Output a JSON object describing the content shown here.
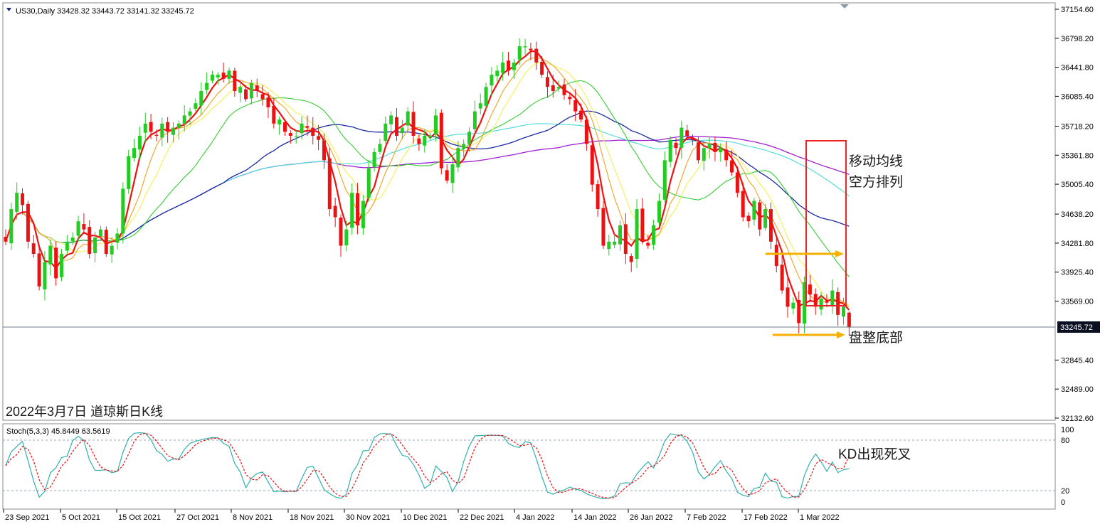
{
  "chart_data": {
    "type": "candlestick",
    "symbol_header": "US30,Daily  33428.32 33443.72 33141.32 33245.72",
    "ohlc_current": {
      "open": 33428.32,
      "high": 33443.72,
      "low": 33141.32,
      "close": 33245.72
    },
    "current_price_label": "33245.72",
    "price_axis_ticks": [
      "37154.60",
      "36798.20",
      "36441.80",
      "36085.40",
      "35718.20",
      "35361.80",
      "35005.40",
      "34638.20",
      "34281.80",
      "33925.40",
      "33569.00",
      "33245.72",
      "32845.40",
      "32489.00",
      "32132.60"
    ],
    "date_labels": [
      "23 Sep 2021",
      "5 Oct 2021",
      "15 Oct 2021",
      "27 Oct 2021",
      "8 Nov 2021",
      "18 Nov 2021",
      "30 Nov 2021",
      "10 Dec 2021",
      "22 Dec 2021",
      "4 Jan 2022",
      "14 Jan 2022",
      "26 Jan 2022",
      "7 Feb 2022",
      "17 Feb 2022",
      "1 Mar 2022"
    ],
    "caption": "2022年3月7日 道琼斯日K线",
    "annotations": {
      "ma_bearish": [
        "移动均线",
        "空方排列"
      ],
      "bottom": "盘整底部",
      "kd": "KD出现死叉"
    },
    "stoch": {
      "label": "Stoch(5,3,3) 45.8449 63.5619",
      "k": 45.8449,
      "d": 63.5619,
      "levels": [
        "100",
        "80",
        "20",
        "0"
      ]
    },
    "colors": {
      "bull": "#22cc22",
      "bear": "#ee1111",
      "ma_fast": "#ee1111",
      "ma_orange": "#f5a020",
      "ma_yellow": "#f5f050",
      "ma_green": "#33cc33",
      "ma_navy": "#1a2aa0",
      "ma_cyan": "#55dddd",
      "ma_purple": "#a020d0",
      "stoch_k": "#30b0b0",
      "stoch_d": "#ee1111",
      "highlight": "#ee2222",
      "arrow": "#f5b000"
    },
    "closes": [
      34300,
      34700,
      34900,
      34750,
      34300,
      34150,
      33750,
      34050,
      34250,
      33850,
      34150,
      34300,
      34350,
      34550,
      34450,
      34150,
      34350,
      34450,
      34150,
      34250,
      34400,
      34950,
      35350,
      35450,
      35600,
      35750,
      35650,
      35600,
      35750,
      35650,
      35700,
      35750,
      35850,
      35900,
      36000,
      36150,
      36250,
      36350,
      36350,
      36300,
      36400,
      36150,
      36200,
      36050,
      36250,
      36150,
      36050,
      35950,
      35750,
      35800,
      35650,
      35600,
      35600,
      35750,
      35700,
      35600,
      35550,
      35300,
      34700,
      34600,
      34250,
      34450,
      34900,
      34500,
      34800,
      35200,
      35400,
      35500,
      35750,
      35850,
      35600,
      35700,
      35900,
      35600,
      35500,
      35600,
      35600,
      35850,
      35200,
      35050,
      35250,
      35450,
      35500,
      35650,
      35900,
      36000,
      36200,
      36350,
      36400,
      36500,
      36400,
      36500,
      36700,
      36700,
      36650,
      36500,
      36350,
      36200,
      36150,
      36200,
      36100,
      36050,
      35900,
      35800,
      35500,
      35000,
      34700,
      34250,
      34300,
      34300,
      34500,
      34150,
      34050,
      34700,
      34300,
      34250,
      34500,
      34800,
      35300,
      35550,
      35450,
      35700,
      35600,
      35550,
      35300,
      35450,
      35500,
      35400,
      35450,
      35300,
      35150,
      34900,
      34600,
      34550,
      34800,
      34450,
      34700,
      34300,
      34000,
      33700,
      33500,
      33550,
      33300,
      33800,
      33650,
      33500,
      33600,
      33550,
      33700,
      33400,
      33500,
      33245
    ]
  }
}
